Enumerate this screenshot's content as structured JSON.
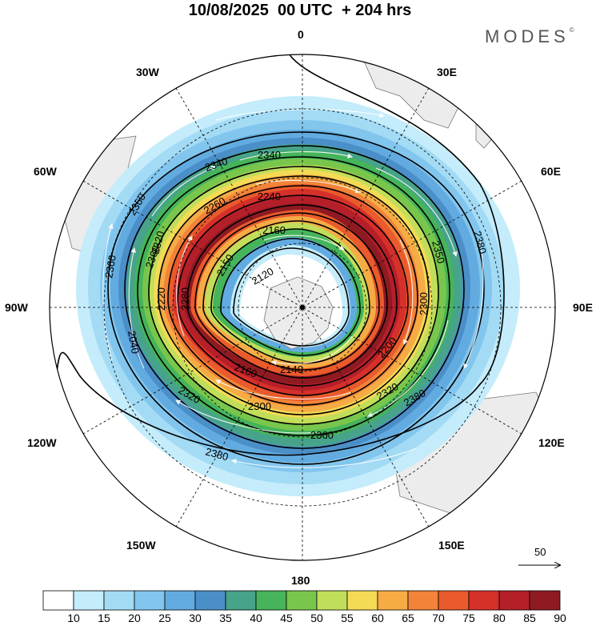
{
  "header": {
    "title": "10/08/2025  00 UTC  + 204 hrs",
    "brand": "MODES",
    "brand_mark": "©"
  },
  "map": {
    "projection": "south-polar-stereographic",
    "meridian_labels": [
      {
        "text": "0",
        "lon": 0
      },
      {
        "text": "30E",
        "lon": 30
      },
      {
        "text": "60E",
        "lon": 60
      },
      {
        "text": "90E",
        "lon": 90
      },
      {
        "text": "120E",
        "lon": 120
      },
      {
        "text": "150E",
        "lon": 150
      },
      {
        "text": "180",
        "lon": 180
      },
      {
        "text": "150W",
        "lon": -150
      },
      {
        "text": "120W",
        "lon": -120
      },
      {
        "text": "90W",
        "lon": -90
      },
      {
        "text": "60W",
        "lon": -60
      },
      {
        "text": "30W",
        "lon": -30
      }
    ],
    "contour_labels": [
      "2340",
      "2340",
      "2360",
      "2240",
      "2260",
      "2360",
      "2320",
      "2160",
      "2150",
      "2350",
      "2380",
      "2360",
      "2120",
      "2040",
      "2220",
      "2280",
      "2300",
      "2140",
      "2200",
      "2320",
      "2160",
      "2320",
      "2300",
      "2380",
      "2360",
      "2380"
    ],
    "wind_scale_label": "50"
  },
  "colorbar": {
    "labels": [
      "10",
      "15",
      "20",
      "25",
      "30",
      "35",
      "40",
      "45",
      "50",
      "55",
      "60",
      "65",
      "70",
      "75",
      "80",
      "85",
      "90"
    ],
    "colors": [
      "#ffffff",
      "#c4ecfb",
      "#a3dbf5",
      "#82c6ee",
      "#62abe0",
      "#4b8fc9",
      "#47a38a",
      "#45b45a",
      "#79c64c",
      "#c1de5a",
      "#f4da55",
      "#f6ab45",
      "#f28338",
      "#e95a2c",
      "#d5302a",
      "#b51f2a",
      "#8e1a22"
    ]
  }
}
